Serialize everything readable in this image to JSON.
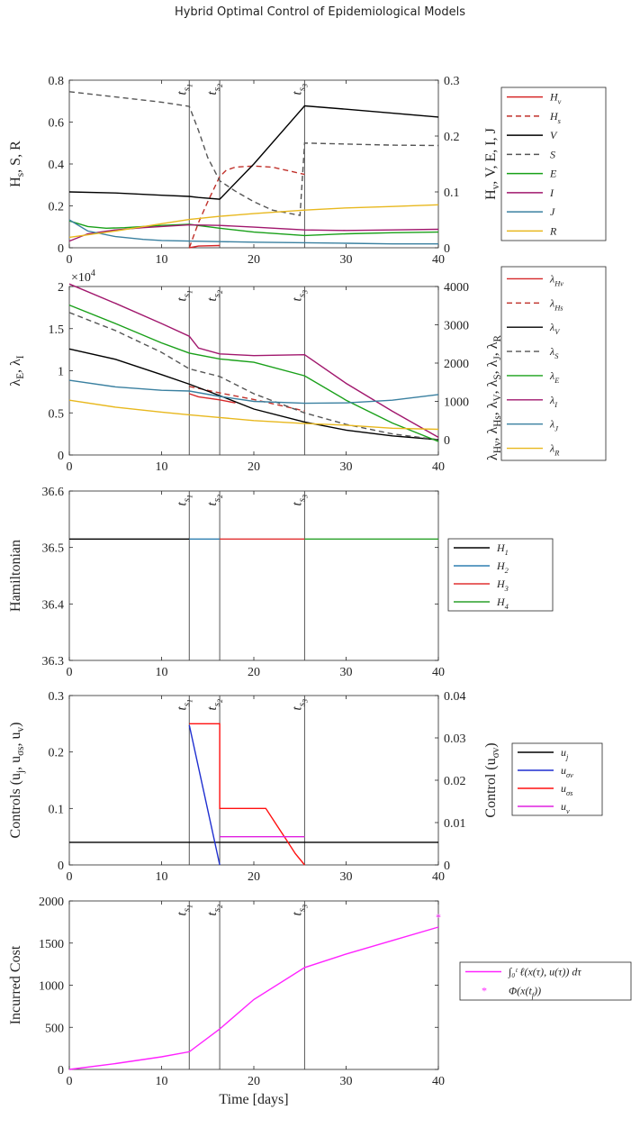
{
  "title": "Hybrid Optimal Control of Epidemiological Models",
  "switch_times": [
    {
      "label": "t_s1",
      "x": 13
    },
    {
      "label": "t_s2",
      "x": 16.3
    },
    {
      "label": "t_s3",
      "x": 25.5
    }
  ],
  "colors": {
    "H_v": "#d62728",
    "H_s": "#c0302a",
    "V": "#000000",
    "S": "#555555",
    "E": "#19a019",
    "I": "#a1176d",
    "J": "#3a80a0",
    "R": "#e8b81e",
    "H1": "#000000",
    "H2": "#2f7fb0",
    "H3": "#e03030",
    "H4": "#2aa02a",
    "u_j": "#000000",
    "u_sv": "#1f2fd0",
    "u_ss": "#ff1010",
    "u_v": "#e020e0",
    "cost": "#ff22ff"
  },
  "chart_data": [
    {
      "type": "line",
      "xlim": [
        0,
        40
      ],
      "xticks": [
        0,
        10,
        20,
        30,
        40
      ],
      "ylabel": "H_s, S, R",
      "ylim": [
        0,
        0.8
      ],
      "yticks": [
        "0",
        "0.2",
        "0.4",
        "0.6",
        "0.8"
      ],
      "y2label": "H_v, V, E, I, J",
      "y2lim": [
        0,
        0.3
      ],
      "y2ticks": [
        "0",
        "0.1",
        "0.2",
        "0.3"
      ],
      "legend_position": "right",
      "series": [
        {
          "name": "H_v",
          "axis": "right",
          "color_key": "H_v",
          "dash": false,
          "x": [
            13,
            14,
            16.3
          ],
          "y": [
            0,
            0.003,
            0.004
          ]
        },
        {
          "name": "H_s",
          "axis": "left",
          "color_key": "H_s",
          "dash": true,
          "x": [
            13,
            14,
            15,
            16.3,
            17,
            18,
            20,
            22,
            24,
            25.5
          ],
          "y": [
            0,
            0.12,
            0.22,
            0.34,
            0.37,
            0.385,
            0.39,
            0.385,
            0.365,
            0.35
          ]
        },
        {
          "name": "V",
          "axis": "right",
          "color_key": "V",
          "dash": false,
          "x": [
            0,
            5,
            10,
            13,
            14,
            16.3,
            20,
            25.5,
            30,
            35,
            40
          ],
          "y": [
            0.1,
            0.098,
            0.094,
            0.092,
            0.09,
            0.087,
            0.15,
            0.254,
            0.248,
            0.241,
            0.234
          ]
        },
        {
          "name": "S",
          "axis": "left",
          "color_key": "S",
          "dash": true,
          "x": [
            0,
            3,
            7,
            10,
            13,
            14,
            15,
            16.3,
            18,
            20,
            22,
            25,
            25.5,
            30,
            35,
            40
          ],
          "y": [
            0.745,
            0.73,
            0.71,
            0.695,
            0.675,
            0.56,
            0.43,
            0.32,
            0.27,
            0.22,
            0.18,
            0.155,
            0.5,
            0.495,
            0.49,
            0.488
          ]
        },
        {
          "name": "E",
          "axis": "right",
          "color_key": "E",
          "dash": false,
          "x": [
            0,
            2,
            4,
            6,
            10,
            13,
            16.3,
            20,
            25.5,
            30,
            35,
            40
          ],
          "y": [
            0.048,
            0.038,
            0.035,
            0.036,
            0.04,
            0.042,
            0.035,
            0.028,
            0.022,
            0.025,
            0.027,
            0.028
          ]
        },
        {
          "name": "I",
          "axis": "right",
          "color_key": "I",
          "dash": false,
          "x": [
            0,
            2,
            5,
            8,
            10,
            13,
            16.3,
            20,
            25.5,
            30,
            35,
            40
          ],
          "y": [
            0.012,
            0.025,
            0.032,
            0.036,
            0.038,
            0.041,
            0.04,
            0.037,
            0.032,
            0.031,
            0.032,
            0.033
          ]
        },
        {
          "name": "J",
          "axis": "right",
          "color_key": "J",
          "dash": false,
          "x": [
            0,
            2,
            5,
            8,
            10,
            13,
            16.3,
            20,
            25.5,
            30,
            35,
            40
          ],
          "y": [
            0.05,
            0.03,
            0.02,
            0.015,
            0.013,
            0.012,
            0.011,
            0.01,
            0.009,
            0.008,
            0.007,
            0.007
          ]
        },
        {
          "name": "R",
          "axis": "left",
          "color_key": "R",
          "dash": false,
          "x": [
            0,
            5,
            10,
            13,
            16.3,
            20,
            25.5,
            30,
            35,
            40
          ],
          "y": [
            0.05,
            0.08,
            0.115,
            0.135,
            0.15,
            0.163,
            0.18,
            0.19,
            0.197,
            0.205
          ]
        }
      ]
    },
    {
      "type": "line",
      "xlim": [
        0,
        40
      ],
      "xticks": [
        0,
        10,
        20,
        30,
        40
      ],
      "exponent_label": "×10^4",
      "ylabel": "λ_E, λ_I",
      "ylim": [
        0,
        20000
      ],
      "yticks": [
        "0",
        "0.5",
        "1",
        "1.5",
        "2"
      ],
      "y2label": "λ_Hv, λ_Hs, λ_V, λ_S, λ_J, λ_R",
      "y2lim": [
        -400,
        4000
      ],
      "y2ticks": [
        "0",
        "1000",
        "2000",
        "3000",
        "4000"
      ],
      "legend_position": "right",
      "series": [
        {
          "name": "λ_Hv",
          "axis": "right",
          "color_key": "H_v",
          "dash": false,
          "x": [
            13,
            14,
            16.3,
            18
          ],
          "y": [
            1200,
            1120,
            1040,
            960
          ]
        },
        {
          "name": "λ_Hs",
          "axis": "right",
          "color_key": "H_s",
          "dash": true,
          "x": [
            13,
            16.3,
            20,
            25.5
          ],
          "y": [
            1390,
            1220,
            1050,
            750
          ]
        },
        {
          "name": "λ_V",
          "axis": "right",
          "color_key": "V",
          "dash": false,
          "x": [
            0,
            5,
            10,
            13,
            16.3,
            20,
            25.5,
            30,
            35,
            40
          ],
          "y": [
            2370,
            2100,
            1700,
            1450,
            1150,
            800,
            460,
            250,
            100,
            0
          ]
        },
        {
          "name": "λ_S",
          "axis": "right",
          "color_key": "S",
          "dash": true,
          "x": [
            0,
            5,
            10,
            13,
            16.3,
            20,
            25.5,
            30,
            35,
            40
          ],
          "y": [
            3320,
            2850,
            2280,
            1850,
            1650,
            1200,
            700,
            400,
            150,
            0
          ]
        },
        {
          "name": "λ_E",
          "axis": "left",
          "color_key": "E",
          "dash": false,
          "x": [
            0,
            5,
            10,
            13,
            16.3,
            20,
            25.5,
            30,
            35,
            40
          ],
          "y": [
            17800,
            15600,
            13300,
            12100,
            11400,
            11000,
            9400,
            6500,
            3800,
            1600
          ]
        },
        {
          "name": "λ_I",
          "axis": "left",
          "color_key": "I",
          "dash": false,
          "x": [
            0,
            5,
            10,
            13,
            14,
            16.3,
            20,
            25.5,
            30,
            35,
            40
          ],
          "y": [
            20300,
            18000,
            15600,
            14100,
            12700,
            12000,
            11800,
            11900,
            8500,
            5200,
            2100
          ]
        },
        {
          "name": "λ_J",
          "axis": "right",
          "color_key": "J",
          "dash": false,
          "x": [
            0,
            5,
            10,
            13,
            16.3,
            20,
            25.5,
            30,
            35,
            40
          ],
          "y": [
            1550,
            1380,
            1290,
            1270,
            1130,
            1000,
            950,
            960,
            1030,
            1180
          ]
        },
        {
          "name": "λ_R",
          "axis": "right",
          "color_key": "R",
          "dash": false,
          "x": [
            0,
            5,
            10,
            13,
            16.3,
            20,
            25.5,
            30,
            35,
            40
          ],
          "y": [
            1030,
            850,
            720,
            650,
            580,
            500,
            420,
            380,
            300,
            270
          ]
        }
      ]
    },
    {
      "type": "line",
      "xlim": [
        0,
        40
      ],
      "xticks": [
        0,
        10,
        20,
        30,
        40
      ],
      "ylabel": "Hamiltonian",
      "ylim": [
        36.3,
        36.6
      ],
      "yticks": [
        "36.3",
        "36.4",
        "36.5",
        "36.6"
      ],
      "legend_position": "right",
      "series": [
        {
          "name": "H_1",
          "axis": "left",
          "color_key": "H1",
          "dash": false,
          "x": [
            0,
            13
          ],
          "y": [
            36.515,
            36.515
          ]
        },
        {
          "name": "H_2",
          "axis": "left",
          "color_key": "H2",
          "dash": false,
          "x": [
            13,
            16.3
          ],
          "y": [
            36.515,
            36.515
          ]
        },
        {
          "name": "H_3",
          "axis": "left",
          "color_key": "H3",
          "dash": false,
          "x": [
            16.3,
            25.5
          ],
          "y": [
            36.515,
            36.515
          ]
        },
        {
          "name": "H_4",
          "axis": "left",
          "color_key": "H4",
          "dash": false,
          "x": [
            25.5,
            40
          ],
          "y": [
            36.515,
            36.515
          ]
        }
      ]
    },
    {
      "type": "line",
      "xlim": [
        0,
        40
      ],
      "xticks": [
        0,
        10,
        20,
        30,
        40
      ],
      "ylabel": "Controls (u_j, u_σs, u_v)",
      "ylim": [
        0,
        0.3
      ],
      "yticks": [
        "0",
        "0.1",
        "0.2",
        "0.3"
      ],
      "y2label": "Control (u_σv)",
      "y2lim": [
        0,
        0.04
      ],
      "y2ticks": [
        "0",
        "0.01",
        "0.02",
        "0.03",
        "0.04"
      ],
      "legend_position": "right",
      "series": [
        {
          "name": "u_j",
          "axis": "left",
          "color_key": "u_j",
          "dash": false,
          "x": [
            0,
            40
          ],
          "y": [
            0.04,
            0.04
          ]
        },
        {
          "name": "u_σv",
          "axis": "right",
          "color_key": "u_sv",
          "dash": false,
          "x": [
            13,
            16.3
          ],
          "y": [
            0.033,
            0
          ]
        },
        {
          "name": "u_σs",
          "axis": "left",
          "color_key": "u_ss",
          "dash": false,
          "x": [
            13,
            16.3,
            16.3,
            16.3,
            21.3,
            22.5,
            23.5,
            24.5,
            25.5
          ],
          "y": [
            0.25,
            0.25,
            0.24,
            0.1,
            0.1,
            0.07,
            0.045,
            0.02,
            0
          ]
        },
        {
          "name": "u_v",
          "axis": "left",
          "color_key": "u_v",
          "dash": false,
          "x": [
            16.3,
            25.5
          ],
          "y": [
            0.05,
            0.05
          ]
        }
      ]
    },
    {
      "type": "line",
      "xlim": [
        0,
        40
      ],
      "xticks": [
        0,
        10,
        20,
        30,
        40
      ],
      "xlabel": "Time [days]",
      "ylabel": "Incurred Cost",
      "ylim": [
        0,
        2000
      ],
      "yticks": [
        "0",
        "500",
        "1000",
        "1500",
        "2000"
      ],
      "legend_position": "right",
      "series": [
        {
          "name": "∫₀ᵗ ℓ(x(τ), u(τ)) dτ",
          "axis": "left",
          "color_key": "cost",
          "dash": false,
          "x": [
            0,
            5,
            10,
            13,
            16.3,
            20,
            25.5,
            30,
            35,
            40
          ],
          "y": [
            0,
            70,
            150,
            210,
            480,
            830,
            1210,
            1370,
            1530,
            1690
          ]
        },
        {
          "name": "Φ(x(t_f))",
          "axis": "left",
          "color_key": "cost",
          "marker": "star",
          "x": [
            40
          ],
          "y": [
            1810
          ]
        }
      ]
    }
  ]
}
